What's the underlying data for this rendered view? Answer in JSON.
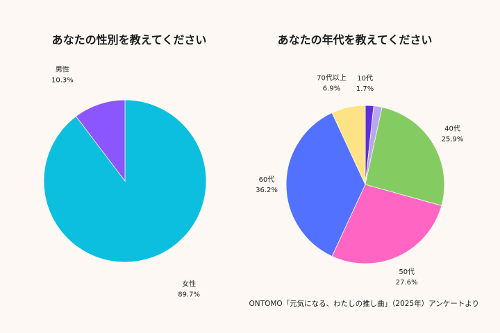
{
  "chart_data": [
    {
      "type": "pie",
      "title": "あなたの性別を教えてください",
      "start": "top",
      "direction": "clockwise",
      "slices": [
        {
          "label": "女性",
          "value": 89.7,
          "value_label": "89.7%",
          "color": "#0dbfdf"
        },
        {
          "label": "男性",
          "value": 10.3,
          "value_label": "10.3%",
          "color": "#8b55ff"
        }
      ]
    },
    {
      "type": "pie",
      "title": "あなたの年代を教えてください",
      "start": "top",
      "direction": "clockwise",
      "slices": [
        {
          "label": "10代",
          "value": 1.7,
          "value_label": "1.7%",
          "color": "#5b2ee0"
        },
        {
          "label": "",
          "value": 1.7,
          "value_label": "",
          "color": "#b9a6ee"
        },
        {
          "label": "40代",
          "value": 25.9,
          "value_label": "25.9%",
          "color": "#84cc62"
        },
        {
          "label": "50代",
          "value": 27.6,
          "value_label": "27.6%",
          "color": "#ff66c4"
        },
        {
          "label": "60代",
          "value": 36.2,
          "value_label": "36.2%",
          "color": "#5271ff"
        },
        {
          "label": "70代以上",
          "value": 6.9,
          "value_label": "6.9%",
          "color": "#fde385"
        }
      ]
    }
  ],
  "source": "ONTOMO「元気になる、わたしの推し曲」（2025年）アンケートより"
}
